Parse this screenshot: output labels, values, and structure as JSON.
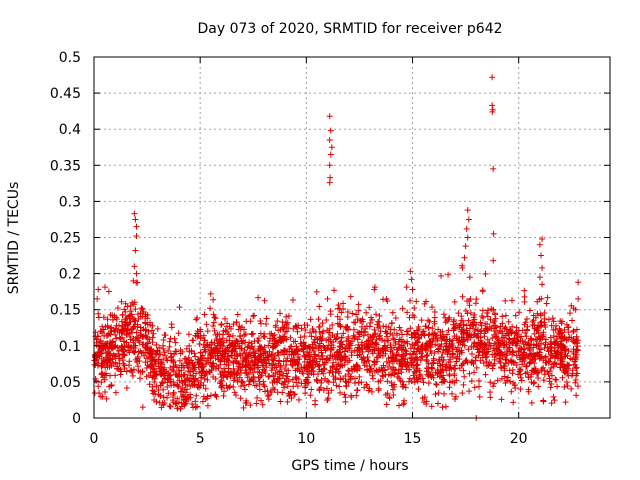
{
  "chart_data": {
    "type": "scatter",
    "title": "Day 073 of 2020, SRMTID for receiver p642",
    "xlabel": "GPS time / hours",
    "ylabel": "SRMTID / TECUs",
    "xlim": [
      0,
      24.3
    ],
    "ylim": [
      0,
      0.5
    ],
    "x_ticks": [
      0,
      5,
      10,
      15,
      20
    ],
    "y_ticks": [
      0,
      0.05,
      0.1,
      0.15,
      0.2,
      0.25,
      0.3,
      0.35,
      0.4,
      0.45,
      0.5
    ],
    "x_tick_labels": [
      "0",
      "5",
      "10",
      "15",
      "20"
    ],
    "y_tick_labels": [
      "0",
      "0.05",
      "0.1",
      "0.15",
      "0.2",
      "0.25",
      "0.3",
      "0.35",
      "0.4",
      "0.45",
      "0.5"
    ],
    "grid": true,
    "marker": "+",
    "marker_color": "#e00000",
    "baseline_profile": [
      [
        0.0,
        0.085
      ],
      [
        0.5,
        0.09
      ],
      [
        1.0,
        0.095
      ],
      [
        1.5,
        0.11
      ],
      [
        2.0,
        0.12
      ],
      [
        2.5,
        0.095
      ],
      [
        3.0,
        0.065
      ],
      [
        3.5,
        0.055
      ],
      [
        4.0,
        0.05
      ],
      [
        4.5,
        0.055
      ],
      [
        5.0,
        0.07
      ],
      [
        5.5,
        0.09
      ],
      [
        6.0,
        0.08
      ],
      [
        7.0,
        0.075
      ],
      [
        8.0,
        0.075
      ],
      [
        9.0,
        0.085
      ],
      [
        10.0,
        0.075
      ],
      [
        11.0,
        0.085
      ],
      [
        12.0,
        0.09
      ],
      [
        13.0,
        0.09
      ],
      [
        14.0,
        0.085
      ],
      [
        15.0,
        0.085
      ],
      [
        16.0,
        0.085
      ],
      [
        17.0,
        0.095
      ],
      [
        17.5,
        0.11
      ],
      [
        18.0,
        0.11
      ],
      [
        19.0,
        0.095
      ],
      [
        20.0,
        0.095
      ],
      [
        21.0,
        0.095
      ],
      [
        22.0,
        0.09
      ],
      [
        22.8,
        0.09
      ]
    ],
    "x_range_data": [
      0.0,
      22.8
    ],
    "point_count": 3000,
    "scatter_spread": 0.028,
    "outliers": [
      {
        "x": 11.1,
        "y": 0.418
      },
      {
        "x": 11.15,
        "y": 0.398
      },
      {
        "x": 11.1,
        "y": 0.385
      },
      {
        "x": 11.2,
        "y": 0.375
      },
      {
        "x": 11.15,
        "y": 0.365
      },
      {
        "x": 11.1,
        "y": 0.35
      },
      {
        "x": 11.12,
        "y": 0.333
      },
      {
        "x": 11.1,
        "y": 0.326
      },
      {
        "x": 18.75,
        "y": 0.472
      },
      {
        "x": 18.75,
        "y": 0.433
      },
      {
        "x": 18.78,
        "y": 0.427
      },
      {
        "x": 18.76,
        "y": 0.424
      },
      {
        "x": 18.8,
        "y": 0.345
      },
      {
        "x": 18.82,
        "y": 0.255
      },
      {
        "x": 18.8,
        "y": 0.218
      },
      {
        "x": 1.9,
        "y": 0.283
      },
      {
        "x": 1.95,
        "y": 0.275
      },
      {
        "x": 2.0,
        "y": 0.265
      },
      {
        "x": 2.0,
        "y": 0.252
      },
      {
        "x": 1.95,
        "y": 0.232
      },
      {
        "x": 1.9,
        "y": 0.21
      },
      {
        "x": 2.0,
        "y": 0.2
      },
      {
        "x": 1.85,
        "y": 0.19
      },
      {
        "x": 17.6,
        "y": 0.288
      },
      {
        "x": 17.65,
        "y": 0.275
      },
      {
        "x": 17.55,
        "y": 0.262
      },
      {
        "x": 17.6,
        "y": 0.25
      },
      {
        "x": 17.5,
        "y": 0.238
      },
      {
        "x": 17.45,
        "y": 0.222
      },
      {
        "x": 17.35,
        "y": 0.208
      },
      {
        "x": 17.7,
        "y": 0.195
      },
      {
        "x": 21.1,
        "y": 0.248
      },
      {
        "x": 21.0,
        "y": 0.24
      },
      {
        "x": 21.05,
        "y": 0.225
      },
      {
        "x": 21.1,
        "y": 0.208
      },
      {
        "x": 21.0,
        "y": 0.195
      },
      {
        "x": 21.1,
        "y": 0.185
      },
      {
        "x": 14.9,
        "y": 0.203
      },
      {
        "x": 14.95,
        "y": 0.192
      },
      {
        "x": 15.0,
        "y": 0.178
      },
      {
        "x": 22.8,
        "y": 0.188
      },
      {
        "x": 22.8,
        "y": 0.165
      },
      {
        "x": 0.2,
        "y": 0.178
      },
      {
        "x": 0.15,
        "y": 0.165
      },
      {
        "x": 5.5,
        "y": 0.172
      },
      {
        "x": 11.0,
        "y": 0.165
      },
      {
        "x": 13.2,
        "y": 0.178
      },
      {
        "x": 18.0,
        "y": 0.0
      },
      {
        "x": 2.3,
        "y": 0.015
      },
      {
        "x": 11.0,
        "y": 0.025
      },
      {
        "x": 16.2,
        "y": 0.02
      }
    ]
  }
}
